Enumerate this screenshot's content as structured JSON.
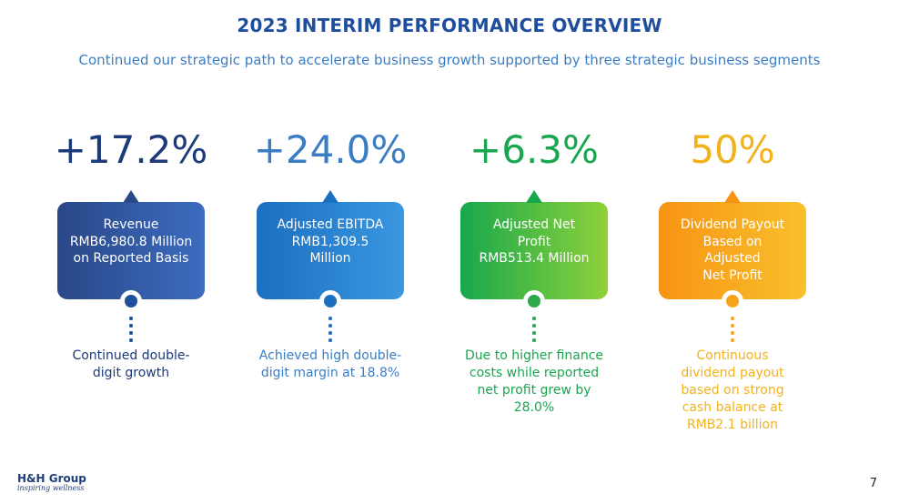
{
  "title": "2023 INTERIM PERFORMANCE OVERVIEW",
  "subtitle": "Continued our strategic path to accelerate business growth supported by three strategic business segments",
  "metrics": [
    {
      "value": "+17.2%",
      "box_lines": [
        "Revenue",
        "RMB6,980.8 Million",
        "on Reported Basis"
      ],
      "note_lines": [
        "Continued double-",
        "digit growth"
      ],
      "colors": {
        "value": "#1b3a7a",
        "box_from": "#2a4787",
        "box_to": "#3c6cc0",
        "accent": "#1f4e9c",
        "note": "#1b3a7a"
      }
    },
    {
      "value": "+24.0%",
      "box_lines": [
        "Adjusted EBITDA",
        "RMB1,309.5",
        "Million"
      ],
      "note_lines": [
        "Achieved high double-",
        "digit margin at 18.8%"
      ],
      "colors": {
        "value": "#3a7dc4",
        "box_from": "#1b6fc0",
        "box_to": "#3a97e0",
        "accent": "#1b6fc0",
        "note": "#3a7dc4"
      }
    },
    {
      "value": "+6.3%",
      "box_lines": [
        "Adjusted Net",
        "Profit",
        "RMB513.4 Million"
      ],
      "note_lines": [
        "Due to higher finance",
        "costs while reported",
        "net profit grew by",
        "28.0%"
      ],
      "colors": {
        "value": "#1aa650",
        "box_from": "#17a84c",
        "box_to": "#8fd13a",
        "accent": "#2ea84a",
        "note": "#1aa650"
      }
    },
    {
      "value": "50%",
      "box_lines": [
        "Dividend Payout",
        "Based on",
        "Adjusted",
        "Net Profit"
      ],
      "note_lines": [
        "Continuous",
        "dividend payout",
        "based on strong",
        "cash balance at",
        "RMB2.1 billion"
      ],
      "colors": {
        "value": "#f2b21c",
        "box_from": "#f79414",
        "box_to": "#f9c02c",
        "accent": "#f7a41c",
        "note": "#f2b21c"
      }
    }
  ],
  "logo": {
    "name": "H&H Group",
    "tagline": "inspiring wellness"
  },
  "page_number": "7"
}
